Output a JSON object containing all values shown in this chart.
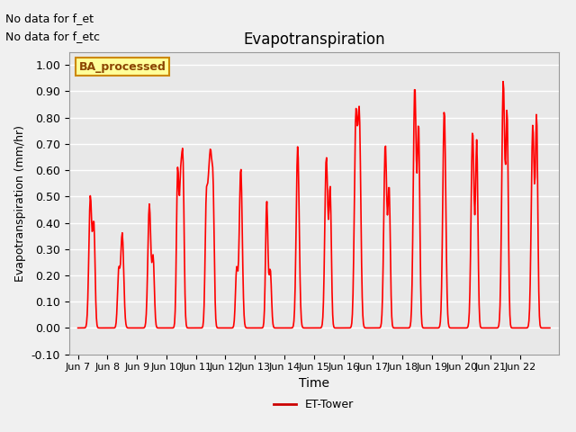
{
  "title": "Evapotranspiration",
  "xlabel": "Time",
  "ylabel": "Evapotranspiration (mm/hr)",
  "ylim": [
    -0.1,
    1.05
  ],
  "yticks": [
    -0.1,
    0.0,
    0.1,
    0.2,
    0.3,
    0.4,
    0.5,
    0.6,
    0.7,
    0.8,
    0.9,
    1.0
  ],
  "line_color": "#FF0000",
  "line_width": 1.2,
  "legend_label": "ET-Tower",
  "legend_line_color": "#CC0000",
  "annotation_text1": "No data for f_et",
  "annotation_text2": "No data for f_etc",
  "box_label": "BA_processed",
  "box_facecolor": "#FFFF99",
  "box_edgecolor": "#CC8800",
  "background_color": "#E8E8E8",
  "grid_color": "#FFFFFF",
  "xtick_labels": [
    "Jun 7",
    "Jun 8",
    "Jun 9",
    "Jun 10",
    "Jun 11",
    "Jun 12",
    "Jun 13",
    "Jun 14",
    "Jun 15",
    "Jun 16",
    "Jun 17",
    "Jun 18",
    "Jun 19",
    "Jun 20",
    "Jun 21",
    "Jun 22"
  ],
  "num_days": 15,
  "peak_configs": [
    [
      0,
      [
        [
          0.42,
          0.5,
          0.05
        ],
        [
          0.54,
          0.38,
          0.04
        ]
      ]
    ],
    [
      1,
      [
        [
          0.38,
          0.21,
          0.04
        ],
        [
          0.5,
          0.36,
          0.05
        ]
      ]
    ],
    [
      2,
      [
        [
          0.42,
          0.47,
          0.05
        ],
        [
          0.55,
          0.26,
          0.04
        ]
      ]
    ],
    [
      3,
      [
        [
          0.38,
          0.59,
          0.04
        ],
        [
          0.48,
          0.5,
          0.04
        ],
        [
          0.56,
          0.59,
          0.04
        ]
      ]
    ],
    [
      4,
      [
        [
          0.35,
          0.46,
          0.04
        ],
        [
          0.43,
          0.42,
          0.04
        ],
        [
          0.5,
          0.52,
          0.04
        ],
        [
          0.58,
          0.51,
          0.04
        ]
      ]
    ],
    [
      5,
      [
        [
          0.38,
          0.22,
          0.04
        ],
        [
          0.52,
          0.61,
          0.05
        ]
      ]
    ],
    [
      6,
      [
        [
          0.4,
          0.48,
          0.04
        ],
        [
          0.52,
          0.22,
          0.04
        ]
      ]
    ],
    [
      7,
      [
        [
          0.45,
          0.69,
          0.05
        ]
      ]
    ],
    [
      8,
      [
        [
          0.42,
          0.65,
          0.05
        ],
        [
          0.55,
          0.52,
          0.04
        ]
      ]
    ],
    [
      9,
      [
        [
          0.42,
          0.78,
          0.05
        ],
        [
          0.54,
          0.79,
          0.05
        ]
      ]
    ],
    [
      10,
      [
        [
          0.42,
          0.7,
          0.05
        ],
        [
          0.55,
          0.52,
          0.04
        ]
      ]
    ],
    [
      11,
      [
        [
          0.42,
          0.92,
          0.05
        ],
        [
          0.55,
          0.75,
          0.04
        ]
      ]
    ],
    [
      12,
      [
        [
          0.42,
          0.83,
          0.05
        ]
      ]
    ],
    [
      13,
      [
        [
          0.38,
          0.75,
          0.05
        ],
        [
          0.52,
          0.7,
          0.04
        ]
      ]
    ],
    [
      14,
      [
        [
          0.42,
          0.94,
          0.05
        ],
        [
          0.55,
          0.8,
          0.04
        ]
      ]
    ],
    [
      15,
      [
        [
          0.42,
          0.77,
          0.05
        ],
        [
          0.55,
          0.79,
          0.04
        ]
      ]
    ]
  ]
}
